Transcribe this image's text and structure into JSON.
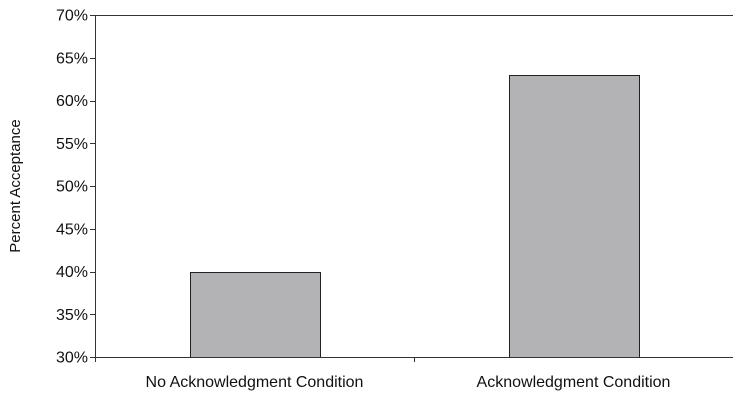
{
  "chart_data": {
    "type": "bar",
    "title": "",
    "xlabel": "",
    "ylabel": "Percent Acceptance",
    "categories": [
      "No Acknowledgment Condition",
      "Acknowledgment Condition"
    ],
    "values": [
      40,
      63
    ],
    "value_format": "percent",
    "ylim": [
      30,
      70
    ],
    "yticks": [
      30,
      35,
      40,
      45,
      50,
      55,
      60,
      65,
      70
    ],
    "ytick_labels": [
      "30%",
      "35%",
      "40%",
      "45%",
      "50%",
      "55%",
      "60%",
      "65%",
      "70%"
    ],
    "grid": false,
    "legend": "none",
    "colors": {
      "bar_fill": "#b3b3b6",
      "bar_stroke": "#222222",
      "axis": "#333333"
    }
  }
}
